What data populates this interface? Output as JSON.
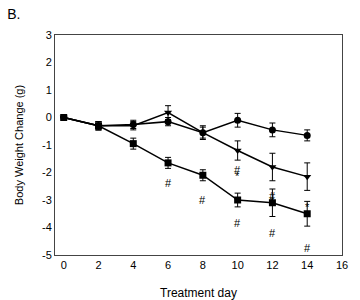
{
  "chart_data": {
    "type": "line",
    "title": "B.",
    "xlabel": "Treatment day",
    "ylabel": "Body Weight Change (g)",
    "x": [
      0,
      2,
      4,
      6,
      8,
      10,
      12,
      14
    ],
    "series": [
      {
        "color": "#000000",
        "marker": "circle",
        "values": [
          0.0,
          -0.3,
          -0.25,
          -0.15,
          -0.55,
          -0.1,
          -0.45,
          -0.65
        ],
        "errors": [
          0.0,
          0.15,
          0.15,
          0.15,
          0.2,
          0.25,
          0.25,
          0.2
        ]
      },
      {
        "color": "#000000",
        "marker": "triangle-down",
        "values": [
          0.0,
          -0.3,
          -0.3,
          0.18,
          -0.55,
          -1.2,
          -1.8,
          -2.15
        ],
        "errors": [
          0.0,
          0.15,
          0.15,
          0.25,
          0.25,
          0.35,
          0.5,
          0.5
        ]
      },
      {
        "color": "#000000",
        "marker": "square",
        "values": [
          0.0,
          -0.3,
          -0.95,
          -1.65,
          -2.1,
          -3.0,
          -3.1,
          -3.5
        ],
        "errors": [
          0.0,
          0.15,
          0.2,
          0.2,
          0.2,
          0.25,
          0.5,
          0.45
        ]
      }
    ],
    "annotations": [
      {
        "x": 6,
        "y": -2.1,
        "text": "#"
      },
      {
        "x": 8,
        "y": -2.7,
        "text": "#"
      },
      {
        "x": 10,
        "y": -3.55,
        "text": "#"
      },
      {
        "x": 10,
        "y": -1.6,
        "text": "#"
      },
      {
        "x": 12,
        "y": -3.9,
        "text": "#"
      },
      {
        "x": 12,
        "y": -2.55,
        "text": "#"
      },
      {
        "x": 14,
        "y": -4.45,
        "text": "#"
      },
      {
        "x": 10,
        "y": -1.85,
        "text": "*"
      },
      {
        "x": 12,
        "y": -2.75,
        "text": "*"
      },
      {
        "x": 14,
        "y": -2.95,
        "text": "*"
      }
    ],
    "xlim": [
      -0.5,
      16
    ],
    "ylim": [
      -5,
      3
    ],
    "xticks": [
      0,
      2,
      4,
      6,
      8,
      10,
      12,
      14,
      16
    ],
    "yticks": [
      -5,
      -4,
      -3,
      -2,
      -1,
      0,
      1,
      2,
      3
    ],
    "grid": false
  }
}
